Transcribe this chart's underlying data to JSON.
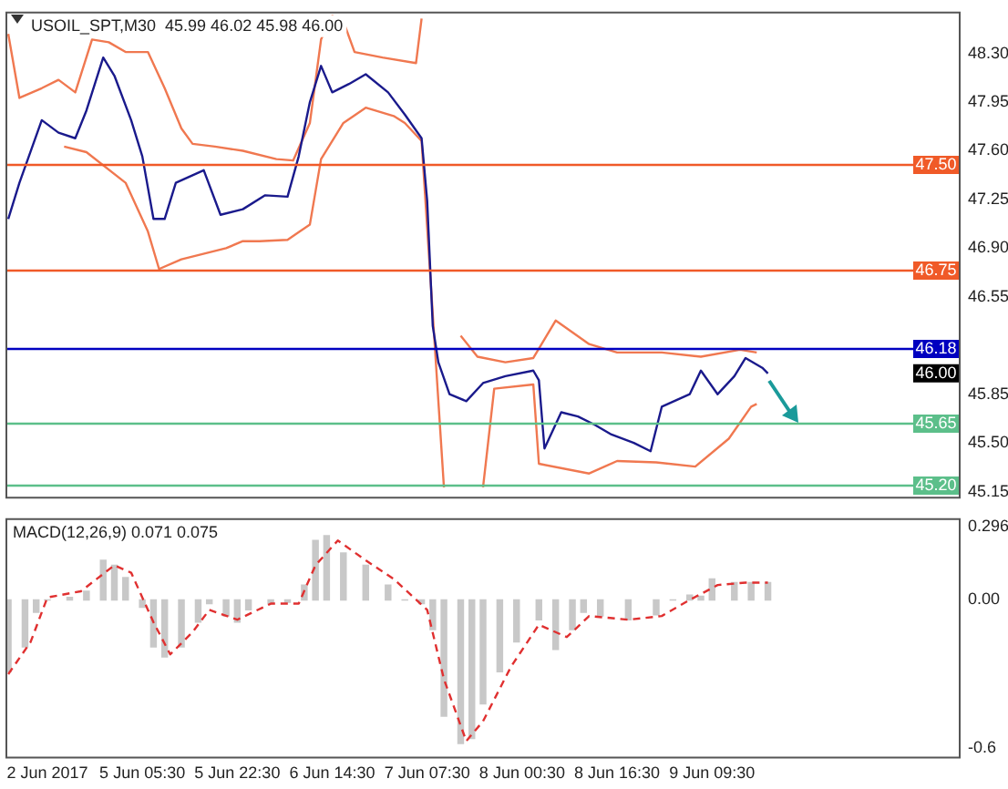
{
  "chart_data": [
    {
      "type": "line",
      "title": "USOIL_SPT,M30  45.99 46.02 45.98 46.00",
      "categories": [
        null,
        null,
        null,
        null,
        null,
        null,
        null,
        null,
        null,
        null,
        null,
        null,
        null,
        null,
        null,
        null,
        null,
        null,
        null,
        null,
        null,
        null,
        null,
        null,
        null,
        null,
        null,
        null,
        null,
        null,
        null,
        null,
        null,
        null,
        null,
        null,
        null,
        null,
        null,
        null,
        null,
        null,
        null,
        null,
        null,
        null,
        null,
        null,
        null,
        null,
        null,
        null,
        null,
        null,
        null,
        null,
        null,
        null,
        null,
        null,
        null,
        null,
        null,
        null,
        null,
        null,
        null,
        null,
        null,
        null,
        null,
        null,
        null,
        null,
        null,
        null,
        null,
        null,
        null,
        null,
        null,
        null,
        null,
        null,
        null,
        null,
        null,
        null,
        null,
        null,
        null,
        null,
        null,
        null,
        null,
        null,
        null,
        null,
        null,
        null,
        null,
        null,
        null,
        null,
        null,
        null,
        null,
        null,
        null,
        null,
        null,
        null,
        null,
        null,
        null,
        null,
        null,
        null,
        null,
        null,
        null,
        null,
        null,
        null,
        null,
        null,
        null,
        null,
        null,
        null,
        null,
        null,
        null,
        null,
        null,
        null,
        null,
        null,
        null,
        null,
        null,
        null,
        null,
        null,
        null,
        null,
        null,
        null,
        null,
        null,
        null,
        null,
        null,
        null,
        null,
        null,
        null,
        null,
        null,
        null,
        null,
        null,
        null,
        null,
        null,
        null,
        null,
        null,
        null,
        null,
        null
      ],
      "ylim": [
        45.1,
        48.6
      ],
      "yticks": [
        {
          "value": 45.15,
          "label": "45.15"
        },
        {
          "value": 45.5,
          "label": "45.50"
        },
        {
          "value": 45.85,
          "label": "45.85"
        },
        {
          "value": 46.55,
          "label": "46.55"
        },
        {
          "value": 46.9,
          "label": "46.90"
        },
        {
          "value": 47.25,
          "label": "47.25"
        },
        {
          "value": 47.6,
          "label": "47.60"
        },
        {
          "value": 47.95,
          "label": "47.95"
        },
        {
          "value": 48.3,
          "label": "48.30"
        }
      ],
      "tick_labels": "y",
      "marker": "none",
      "line_style": "solid",
      "series": [
        {
          "color": "#1a1a8c",
          "values": [
            47.11,
            null,
            47.37,
            null,
            null,
            null,
            47.82,
            null,
            null,
            47.73,
            null,
            null,
            47.69,
            null,
            47.89,
            null,
            null,
            48.27,
            null,
            48.14,
            null,
            null,
            47.82,
            null,
            47.56,
            null,
            47.11,
            null,
            47.11,
            null,
            47.37,
            null,
            null,
            null,
            null,
            47.46,
            null,
            null,
            47.14,
            null,
            null,
            null,
            47.18,
            null,
            null,
            null,
            47.28,
            null,
            null,
            null,
            47.27,
            null,
            47.56,
            null,
            47.95,
            null,
            48.21,
            null,
            48.02,
            null,
            null,
            48.08,
            null,
            null,
            48.15,
            null,
            null,
            null,
            48.02,
            null,
            null,
            47.86,
            null,
            null,
            47.69,
            47.24,
            46.34,
            46.08,
            null,
            45.85,
            null,
            null,
            45.8,
            null,
            null,
            45.93,
            null,
            null,
            null,
            45.98,
            null,
            null,
            null,
            null,
            46.02,
            45.95,
            45.46,
            null,
            null,
            45.72,
            null,
            null,
            45.69,
            null,
            null,
            45.63,
            null,
            null,
            45.56,
            null,
            null,
            null,
            45.5,
            null,
            null,
            45.44,
            null,
            45.76,
            null,
            null,
            null,
            null,
            45.85,
            null,
            46.02,
            null,
            null,
            45.85,
            null,
            null,
            45.98,
            null,
            46.11,
            null,
            null,
            46.04,
            46.0,
            null,
            null,
            null,
            null,
            null,
            null,
            null,
            null,
            null,
            null,
            null,
            null,
            null,
            null,
            null,
            null,
            null,
            null,
            null,
            null,
            null,
            null,
            null,
            null,
            null,
            null,
            null,
            null,
            null,
            null,
            null,
            null,
            null,
            null
          ]
        },
        {
          "color": "#f07850",
          "values": [
            48.44,
            null,
            47.98,
            null,
            null,
            null,
            48.05,
            null,
            null,
            48.11,
            null,
            null,
            48.02,
            null,
            null,
            48.4,
            null,
            null,
            48.38,
            null,
            null,
            48.31,
            null,
            null,
            null,
            48.31,
            null,
            null,
            48.05,
            null,
            null,
            47.76,
            null,
            47.65,
            null,
            null,
            null,
            47.63,
            null,
            null,
            null,
            null,
            47.6,
            null,
            null,
            null,
            null,
            null,
            47.54,
            null,
            null,
            47.53,
            null,
            null,
            47.8,
            null,
            48.4,
            null,
            48.57,
            null,
            48.53,
            null,
            48.31,
            null,
            null,
            null,
            null,
            48.27,
            null,
            null,
            null,
            null,
            null,
            48.23,
            48.55,
            null,
            null,
            null,
            null,
            null,
            null,
            null,
            null,
            null,
            null,
            null,
            null,
            null,
            null,
            null,
            null,
            null,
            null,
            null,
            null,
            null,
            null,
            null,
            null,
            null,
            null,
            null,
            null,
            null,
            null,
            null,
            null,
            null,
            null,
            null,
            null,
            null,
            null,
            null,
            null,
            null,
            null,
            null,
            null,
            null,
            null,
            null,
            null,
            null,
            null,
            null,
            null,
            null,
            null,
            null,
            null,
            null,
            null,
            null,
            null,
            null,
            null,
            null,
            null,
            null,
            null,
            null,
            null,
            null,
            null,
            null,
            null,
            null,
            null,
            null,
            null,
            null,
            null,
            null,
            null,
            null,
            null,
            null,
            null,
            null,
            null,
            null,
            null,
            null,
            null,
            null,
            null,
            null,
            null,
            null,
            null
          ]
        },
        {
          "color": "#f07850",
          "values": [
            null,
            null,
            null,
            null,
            null,
            null,
            null,
            null,
            null,
            null,
            null,
            null,
            null,
            null,
            null,
            null,
            null,
            null,
            null,
            null,
            null,
            null,
            null,
            null,
            null,
            null,
            null,
            null,
            null,
            null,
            null,
            null,
            null,
            null,
            null,
            null,
            null,
            null,
            null,
            null,
            null,
            null,
            null,
            null,
            null,
            null,
            null,
            null,
            null,
            null,
            null,
            null,
            null,
            null,
            null,
            null,
            null,
            null,
            null,
            null,
            null,
            null,
            null,
            null,
            null,
            null,
            null,
            null,
            null,
            null,
            null,
            null,
            null,
            null,
            null,
            null,
            null,
            null,
            null,
            null,
            null,
            46.27,
            null,
            null,
            46.12,
            null,
            null,
            null,
            null,
            46.08,
            null,
            null,
            null,
            null,
            46.11,
            null,
            null,
            null,
            46.38,
            null,
            null,
            null,
            null,
            null,
            46.21,
            null,
            null,
            null,
            null,
            46.15,
            null,
            null,
            null,
            null,
            null,
            null,
            null,
            46.15,
            null,
            null,
            null,
            null,
            null,
            null,
            46.12,
            null,
            null,
            null,
            null,
            null,
            null,
            46.17,
            null,
            null,
            46.15,
            null,
            null,
            null,
            null,
            null,
            null,
            null,
            null,
            null,
            null,
            null,
            null,
            null,
            null,
            null,
            null,
            null,
            null,
            null,
            null,
            null,
            null,
            null,
            null,
            null,
            null,
            null,
            null,
            null,
            null,
            null,
            null,
            null,
            null,
            null,
            null
          ]
        },
        {
          "color": "#f07850",
          "values": [
            null,
            null,
            null,
            null,
            null,
            null,
            null,
            null,
            null,
            null,
            47.63,
            null,
            null,
            null,
            47.59,
            null,
            null,
            null,
            null,
            null,
            null,
            47.37,
            null,
            null,
            null,
            47.02,
            null,
            46.75,
            null,
            null,
            null,
            46.82,
            null,
            null,
            null,
            null,
            null,
            null,
            null,
            46.9,
            null,
            null,
            46.95,
            null,
            null,
            46.95,
            null,
            null,
            null,
            null,
            46.96,
            null,
            null,
            null,
            47.07,
            null,
            47.54,
            null,
            null,
            null,
            47.8,
            null,
            null,
            null,
            47.91,
            null,
            null,
            null,
            null,
            47.85,
            null,
            47.8,
            null,
            null,
            47.67,
            null,
            null,
            null,
            45.18,
            null,
            null,
            null,
            null,
            null,
            null,
            null,
            null,
            null,
            null,
            null,
            null,
            null,
            null,
            null,
            null,
            null,
            null,
            null,
            null,
            null,
            null,
            null,
            null,
            null,
            null,
            null,
            null,
            null,
            null,
            null,
            null,
            null,
            null,
            null,
            null,
            null,
            null,
            null,
            null,
            null,
            null,
            null,
            null,
            null,
            null,
            null,
            null,
            null,
            null,
            null,
            null,
            null,
            null,
            null,
            null,
            null,
            null,
            null,
            null,
            null,
            null,
            null,
            null,
            null,
            null,
            null,
            null,
            null,
            null,
            null,
            null,
            null,
            null,
            null,
            null,
            null,
            null,
            null,
            null,
            null,
            null,
            null,
            null,
            null,
            null,
            null,
            null,
            null,
            null,
            null,
            null
          ]
        },
        {
          "color": "#f07850",
          "values": [
            null,
            null,
            null,
            null,
            null,
            null,
            null,
            null,
            null,
            null,
            null,
            null,
            null,
            null,
            null,
            null,
            null,
            null,
            null,
            null,
            null,
            null,
            null,
            null,
            null,
            null,
            null,
            null,
            null,
            null,
            null,
            null,
            null,
            null,
            null,
            null,
            null,
            null,
            null,
            null,
            null,
            null,
            null,
            null,
            null,
            null,
            null,
            null,
            null,
            null,
            null,
            null,
            null,
            null,
            null,
            null,
            null,
            null,
            null,
            null,
            null,
            null,
            null,
            null,
            null,
            null,
            null,
            null,
            null,
            null,
            null,
            null,
            null,
            null,
            null,
            null,
            null,
            null,
            null,
            null,
            null,
            null,
            null,
            null,
            null,
            45.18,
            null,
            45.89,
            null,
            null,
            null,
            null,
            null,
            null,
            45.92,
            45.35,
            null,
            null,
            null,
            null,
            null,
            null,
            null,
            null,
            45.28,
            null,
            null,
            null,
            null,
            45.37,
            null,
            null,
            null,
            null,
            null,
            null,
            45.36,
            null,
            null,
            null,
            null,
            null,
            null,
            45.33,
            null,
            null,
            null,
            null,
            null,
            45.53,
            null,
            null,
            null,
            45.76,
            45.78,
            null,
            null,
            null,
            null,
            null,
            null,
            null,
            null,
            null,
            null,
            null,
            null,
            null,
            null,
            null,
            null,
            null,
            null,
            null,
            null,
            null,
            null,
            null,
            null,
            null,
            null,
            null,
            null,
            null,
            null,
            null,
            null,
            null,
            null,
            null,
            null
          ]
        }
      ],
      "ref_lines": [
        {
          "axis": "y",
          "value": 47.5,
          "label": "47.50",
          "color": "#f05a28"
        },
        {
          "axis": "y",
          "value": 46.75,
          "label": "46.75",
          "color": "#f05a28"
        },
        {
          "axis": "y",
          "value": 46.18,
          "label": "46.18",
          "color": "#0000c0"
        },
        {
          "axis": "y",
          "value": 45.65,
          "label": "45.65",
          "color": "#5cbf8a"
        },
        {
          "axis": "y",
          "value": 45.2,
          "label": "45.20",
          "color": "#5cbf8a"
        }
      ],
      "annotations": [
        {
          "text": "46.00",
          "y": 46.0
        }
      ]
    },
    {
      "type": "bar",
      "title": "MACD(12,26,9) 0.071 0.075",
      "categories": [
        null,
        null,
        null,
        null,
        null,
        null,
        null,
        "2 Jun 2017",
        null,
        null,
        null,
        null,
        null,
        null,
        null,
        null,
        null,
        null,
        null,
        null,
        null,
        null,
        null,
        null,
        "5 Jun 05:30",
        null,
        null,
        null,
        null,
        null,
        null,
        null,
        null,
        null,
        null,
        null,
        null,
        null,
        null,
        null,
        null,
        "5 Jun 22:30",
        null,
        null,
        null,
        null,
        null,
        null,
        null,
        null,
        null,
        null,
        null,
        null,
        null,
        null,
        null,
        null,
        "6 Jun 14:30",
        null,
        null,
        null,
        null,
        null,
        null,
        null,
        null,
        null,
        null,
        null,
        null,
        null,
        null,
        null,
        null,
        "7 Jun 07:30",
        null,
        null,
        null,
        null,
        null,
        null,
        null,
        null,
        null,
        null,
        null,
        null,
        null,
        null,
        null,
        null,
        "8 Jun 00:30",
        null,
        null,
        null,
        null,
        null,
        null,
        null,
        null,
        null,
        null,
        null,
        null,
        null,
        null,
        null,
        null,
        "8 Jun 16:30",
        null,
        null,
        null,
        null,
        null,
        null,
        null,
        null,
        null,
        null,
        null,
        null,
        null,
        null,
        null,
        null,
        "9 Jun 09:30",
        null,
        null,
        null,
        null,
        null,
        null,
        null,
        null,
        null,
        null,
        null,
        null,
        null,
        null,
        null,
        null,
        null,
        null,
        null,
        null,
        null,
        null,
        null,
        null,
        null,
        null,
        null,
        null,
        null,
        null,
        null,
        null,
        null,
        null,
        null,
        null,
        null,
        null,
        null,
        null,
        null,
        null,
        null,
        null
      ],
      "ylim": [
        -0.64,
        0.33
      ],
      "yticks": [
        -0.6,
        {
          "value": 0,
          "label": "0.00"
        },
        0.296
      ],
      "marker": "none",
      "series": [
        {
          "color": "#c8c8c8",
          "values": [
            -0.29,
            null,
            null,
            -0.19,
            null,
            -0.05,
            null,
            0,
            null,
            null,
            null,
            0.01,
            null,
            null,
            0.035,
            null,
            null,
            0.16,
            null,
            0.14,
            null,
            0.09,
            null,
            null,
            -0.03,
            null,
            -0.19,
            null,
            -0.23,
            null,
            null,
            -0.19,
            null,
            null,
            -0.09,
            null,
            -0.015,
            null,
            null,
            -0.065,
            null,
            -0.09,
            null,
            -0.04,
            null,
            null,
            null,
            -0.015,
            null,
            null,
            -0.01,
            null,
            null,
            0.06,
            null,
            0.24,
            null,
            0.26,
            null,
            null,
            0.19,
            null,
            null,
            null,
            0.14,
            null,
            null,
            null,
            0.06,
            null,
            null,
            0,
            null,
            null,
            -0.015,
            null,
            -0.12,
            null,
            -0.47,
            null,
            null,
            -0.58,
            null,
            -0.56,
            null,
            -0.42,
            null,
            null,
            -0.29,
            null,
            null,
            -0.17,
            null,
            null,
            null,
            -0.08,
            null,
            null,
            -0.2,
            null,
            null,
            -0.12,
            null,
            -0.05,
            null,
            null,
            -0.065,
            null,
            null,
            null,
            null,
            -0.08,
            null,
            null,
            null,
            null,
            -0.06,
            null,
            null,
            0,
            null,
            null,
            0.02,
            null,
            0.015,
            null,
            0.085,
            null,
            null,
            null,
            0.07,
            null,
            null,
            0.07,
            null,
            null,
            0.07,
            null,
            null,
            null,
            null,
            null,
            null,
            null,
            null,
            null,
            null,
            null,
            null,
            null,
            null,
            null,
            null,
            null,
            null,
            null,
            null,
            null,
            null,
            null,
            null,
            null,
            null,
            null,
            null,
            null,
            null,
            null,
            null,
            null,
            null
          ]
        },
        {
          "type": "line",
          "color": "#e03030",
          "line_style": "dashed",
          "values": [
            -0.3,
            null,
            null,
            null,
            -0.17,
            null,
            null,
            0.01,
            null,
            null,
            null,
            null,
            null,
            0.035,
            null,
            null,
            null,
            null,
            null,
            0.14,
            null,
            null,
            0.11,
            null,
            null,
            null,
            -0.09,
            null,
            null,
            -0.22,
            null,
            null,
            null,
            -0.13,
            null,
            null,
            -0.04,
            null,
            null,
            null,
            null,
            -0.08,
            null,
            null,
            null,
            null,
            null,
            -0.015,
            null,
            null,
            null,
            null,
            -0.015,
            null,
            null,
            0.14,
            null,
            null,
            null,
            0.24,
            null,
            null,
            null,
            null,
            0.16,
            null,
            null,
            null,
            null,
            0.085,
            null,
            null,
            null,
            null,
            null,
            -0.04,
            null,
            null,
            -0.32,
            null,
            null,
            null,
            -0.57,
            null,
            null,
            -0.49,
            null,
            null,
            null,
            null,
            -0.27,
            null,
            null,
            null,
            null,
            -0.1,
            null,
            null,
            null,
            null,
            -0.15,
            null,
            null,
            null,
            -0.065,
            null,
            null,
            null,
            null,
            null,
            null,
            -0.08,
            null,
            null,
            null,
            null,
            null,
            -0.065,
            null,
            null,
            null,
            null,
            0,
            null,
            null,
            null,
            null,
            0.06,
            null,
            null,
            null,
            null,
            0.07,
            null,
            null,
            null,
            0.07,
            null,
            null,
            null,
            null,
            null,
            null,
            null,
            null,
            null,
            null,
            null,
            null,
            null,
            null,
            null,
            null,
            null,
            null,
            null,
            null,
            null,
            null,
            null,
            null,
            null,
            null,
            null,
            null,
            null,
            null,
            null,
            null,
            null,
            null
          ]
        }
      ]
    }
  ]
}
